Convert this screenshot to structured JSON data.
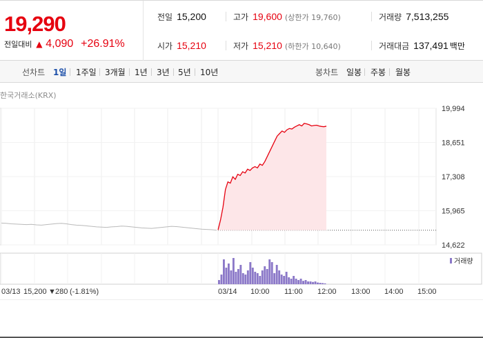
{
  "summary": {
    "price": "19,290",
    "change_label": "전일대비",
    "change_arrow": "▲",
    "change_amount": "4,090",
    "change_rate": "+26.91%",
    "prev_close": {
      "label": "전일",
      "value": "15,200"
    },
    "open": {
      "label": "시가",
      "value": "15,210"
    },
    "high": {
      "label": "고가",
      "value": "19,600",
      "sub": "(상한가 19,760)"
    },
    "low": {
      "label": "저가",
      "value": "15,210",
      "sub": "(하한가 10,640)"
    },
    "volume": {
      "label": "거래량",
      "value": "7,513,255"
    },
    "amount": {
      "label": "거래대금",
      "value": "137,491",
      "unit": "백만"
    }
  },
  "toolbar": {
    "line_label": "선차트",
    "line_options": [
      "1일",
      "1주일",
      "3개월",
      "1년",
      "3년",
      "5년",
      "10년"
    ],
    "active": "1일",
    "candle_label": "봉차트",
    "candle_options": [
      "일봉",
      "주봉",
      "월봉"
    ]
  },
  "source": "한국거래소(KRX)",
  "colors": {
    "accent_red": "#e6000f",
    "down_blue": "#1b4ea8",
    "volume_purple": "#8b78c8"
  },
  "chart_data": {
    "type": "line",
    "yticks": [
      "19,994",
      "18,651",
      "17,308",
      "15,965",
      "14,622"
    ],
    "ylim": [
      14622,
      19994
    ],
    "prev_close": 15200,
    "xticks_today": [
      "03/14",
      "10:00",
      "11:00",
      "12:00",
      "13:00",
      "14:00",
      "15:00"
    ],
    "prev_day": {
      "date": "03/13",
      "close": "15,200",
      "arrow": "▼",
      "change": "280",
      "rate": "(-1.81%)",
      "values": [
        15480,
        15470,
        15450,
        15440,
        15430,
        15420,
        15430,
        15410,
        15400,
        15420,
        15440,
        15460,
        15470,
        15450,
        15420,
        15400,
        15390,
        15370,
        15350,
        15330,
        15320,
        15310,
        15330,
        15340,
        15360,
        15350,
        15330,
        15310,
        15290,
        15280,
        15270,
        15290,
        15310,
        15330,
        15350,
        15340,
        15320,
        15300,
        15280,
        15260,
        15240,
        15230,
        15220,
        15200
      ]
    },
    "today": {
      "values": [
        15210,
        15600,
        16100,
        16800,
        17100,
        17050,
        17300,
        17200,
        17400,
        17350,
        17500,
        17450,
        17600,
        17550,
        17650,
        17700,
        17650,
        17800,
        17750,
        17900,
        18100,
        18300,
        18500,
        18700,
        18900,
        19000,
        19100,
        19050,
        19150,
        19200,
        19180,
        19250,
        19300,
        19350,
        19300,
        19400,
        19380,
        19350,
        19300,
        19320,
        19330,
        19300,
        19280,
        19270,
        19290
      ]
    },
    "volume_legend": "거래량",
    "volume": [
      0.15,
      0.35,
      0.9,
      0.6,
      0.75,
      0.5,
      0.95,
      0.45,
      0.55,
      0.7,
      0.4,
      0.35,
      0.5,
      0.8,
      0.6,
      0.45,
      0.4,
      0.3,
      0.5,
      0.65,
      0.55,
      0.9,
      0.8,
      0.4,
      0.7,
      0.5,
      0.35,
      0.3,
      0.45,
      0.25,
      0.2,
      0.3,
      0.2,
      0.15,
      0.2,
      0.12,
      0.15,
      0.1,
      0.1,
      0.08,
      0.1,
      0.06,
      0.05,
      0.04,
      0.03
    ]
  }
}
